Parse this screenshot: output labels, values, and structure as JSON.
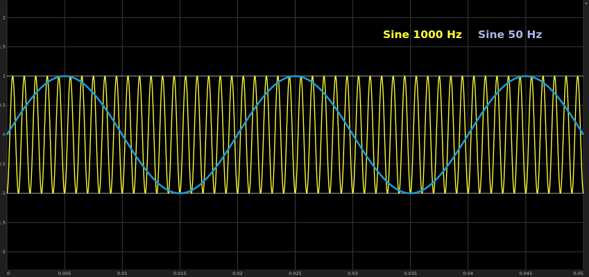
{
  "chart_data": {
    "type": "line",
    "title": "",
    "xlabel": "",
    "ylabel": "",
    "xlim": [
      0,
      0.05
    ],
    "ylim": [
      -2.3,
      2.3
    ],
    "x_ticks": [
      0,
      0.005,
      0.01,
      0.015,
      0.02,
      0.025,
      0.03,
      0.035,
      0.04,
      0.045,
      0.05
    ],
    "x_tick_labels": [
      "0",
      "0.005",
      "0.01",
      "0.015",
      "0.02",
      "0.025",
      "0.03",
      "0.035",
      "0.04",
      "0.045",
      "0.05"
    ],
    "y_ticks": [
      2,
      1.5,
      1,
      0.5,
      0,
      -0.5,
      -1,
      -1.5,
      -2
    ],
    "y_tick_labels": [
      "2",
      "1.5",
      "1",
      "0.5",
      "0",
      "-0.5",
      "-1",
      "-1.5",
      "-2"
    ],
    "grid": true,
    "legend_position": "top-right",
    "legend": [
      "Sine 1000 Hz",
      "Sine 50 Hz"
    ],
    "series": [
      {
        "name": "Sine 1000 Hz",
        "function": "sin",
        "frequency_hz": 1000,
        "amplitude": 1,
        "phase_offset_s": 0.00025,
        "color": "#ffff33"
      },
      {
        "name": "Sine 50 Hz",
        "function": "sin",
        "frequency_hz": 50,
        "amplitude": 1,
        "phase_offset_s": 0,
        "color": "#1e9bd7"
      }
    ]
  },
  "colors": {
    "background": "#000000",
    "frame": "#1f1f1f",
    "grid": "#3a3a3a",
    "ref_line": "#a8a8a8",
    "tick_text": "#bdbdbd"
  },
  "corner_marker": "»",
  "legend_colors": [
    "#ffff33",
    "#a9b8e6"
  ]
}
